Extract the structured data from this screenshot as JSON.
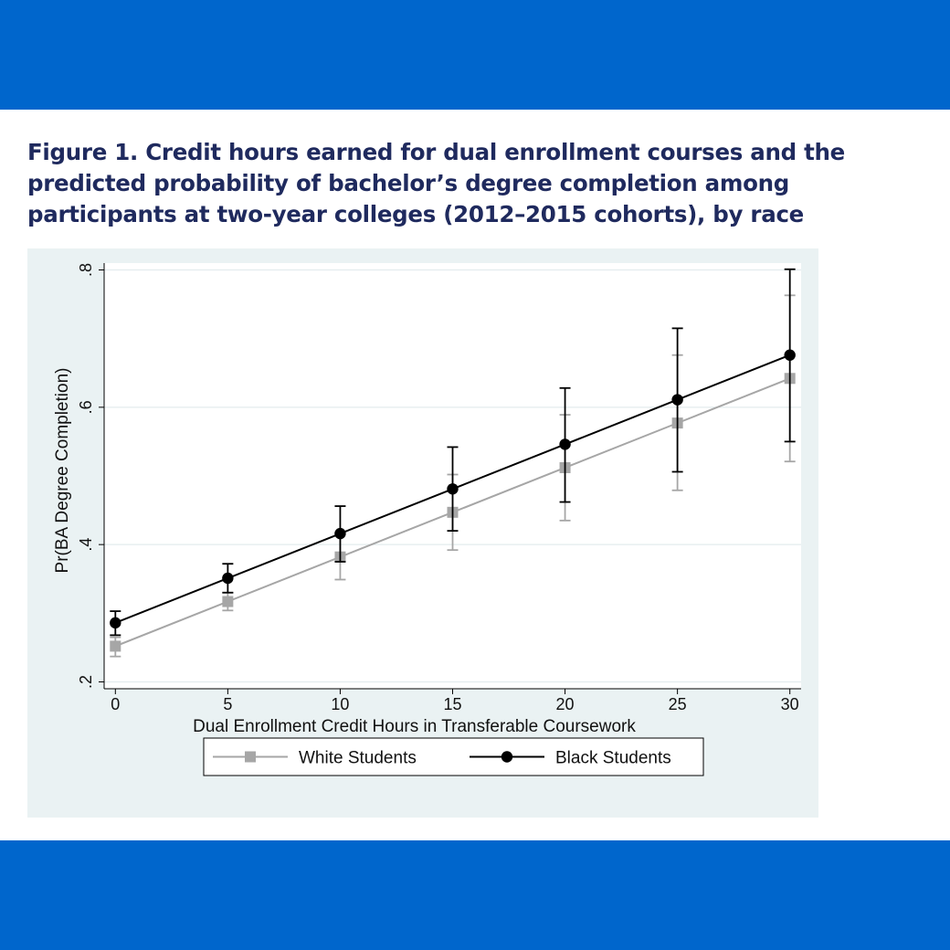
{
  "page": {
    "title": "Figure 1. Credit hours earned for dual enrollment courses and the predicted probability of bachelor’s degree completion among participants at two-year colleges (2012–2015 cohorts), by race",
    "colors": {
      "band": "#0066cc",
      "title": "#1f2a5e",
      "panel": "#eaf2f3"
    }
  },
  "chart_data": {
    "type": "line",
    "title": "",
    "xlabel": "Dual Enrollment Credit Hours in Transferable Coursework",
    "ylabel": "Pr(BA Degree Completion)",
    "x": [
      0,
      5,
      10,
      15,
      20,
      25,
      30
    ],
    "xticks": [
      0,
      5,
      10,
      15,
      20,
      25,
      30
    ],
    "xtick_labels": [
      "0",
      "5",
      "10",
      "15",
      "20",
      "25",
      "30"
    ],
    "yticks": [
      0.2,
      0.4,
      0.6,
      0.8
    ],
    "ytick_labels": [
      ".2",
      ".4",
      ".6",
      ".8"
    ],
    "xlim": [
      -0.5,
      30.5
    ],
    "ylim": [
      0.19,
      0.81
    ],
    "grid": true,
    "legend_position": "bottom",
    "series": [
      {
        "name": "White Students",
        "color": "#a6a6a6",
        "marker": "square",
        "values": [
          0.252,
          0.317,
          0.382,
          0.447,
          0.512,
          0.577,
          0.642
        ],
        "lower": [
          0.237,
          0.304,
          0.349,
          0.392,
          0.435,
          0.479,
          0.521
        ],
        "upper": [
          0.265,
          0.33,
          0.416,
          0.502,
          0.589,
          0.676,
          0.763
        ]
      },
      {
        "name": "Black Students",
        "color": "#000000",
        "marker": "circle",
        "values": [
          0.286,
          0.351,
          0.416,
          0.481,
          0.546,
          0.611,
          0.676
        ],
        "lower": [
          0.268,
          0.33,
          0.375,
          0.42,
          0.462,
          0.506,
          0.55
        ],
        "upper": [
          0.303,
          0.372,
          0.456,
          0.542,
          0.628,
          0.715,
          0.801
        ]
      }
    ]
  }
}
